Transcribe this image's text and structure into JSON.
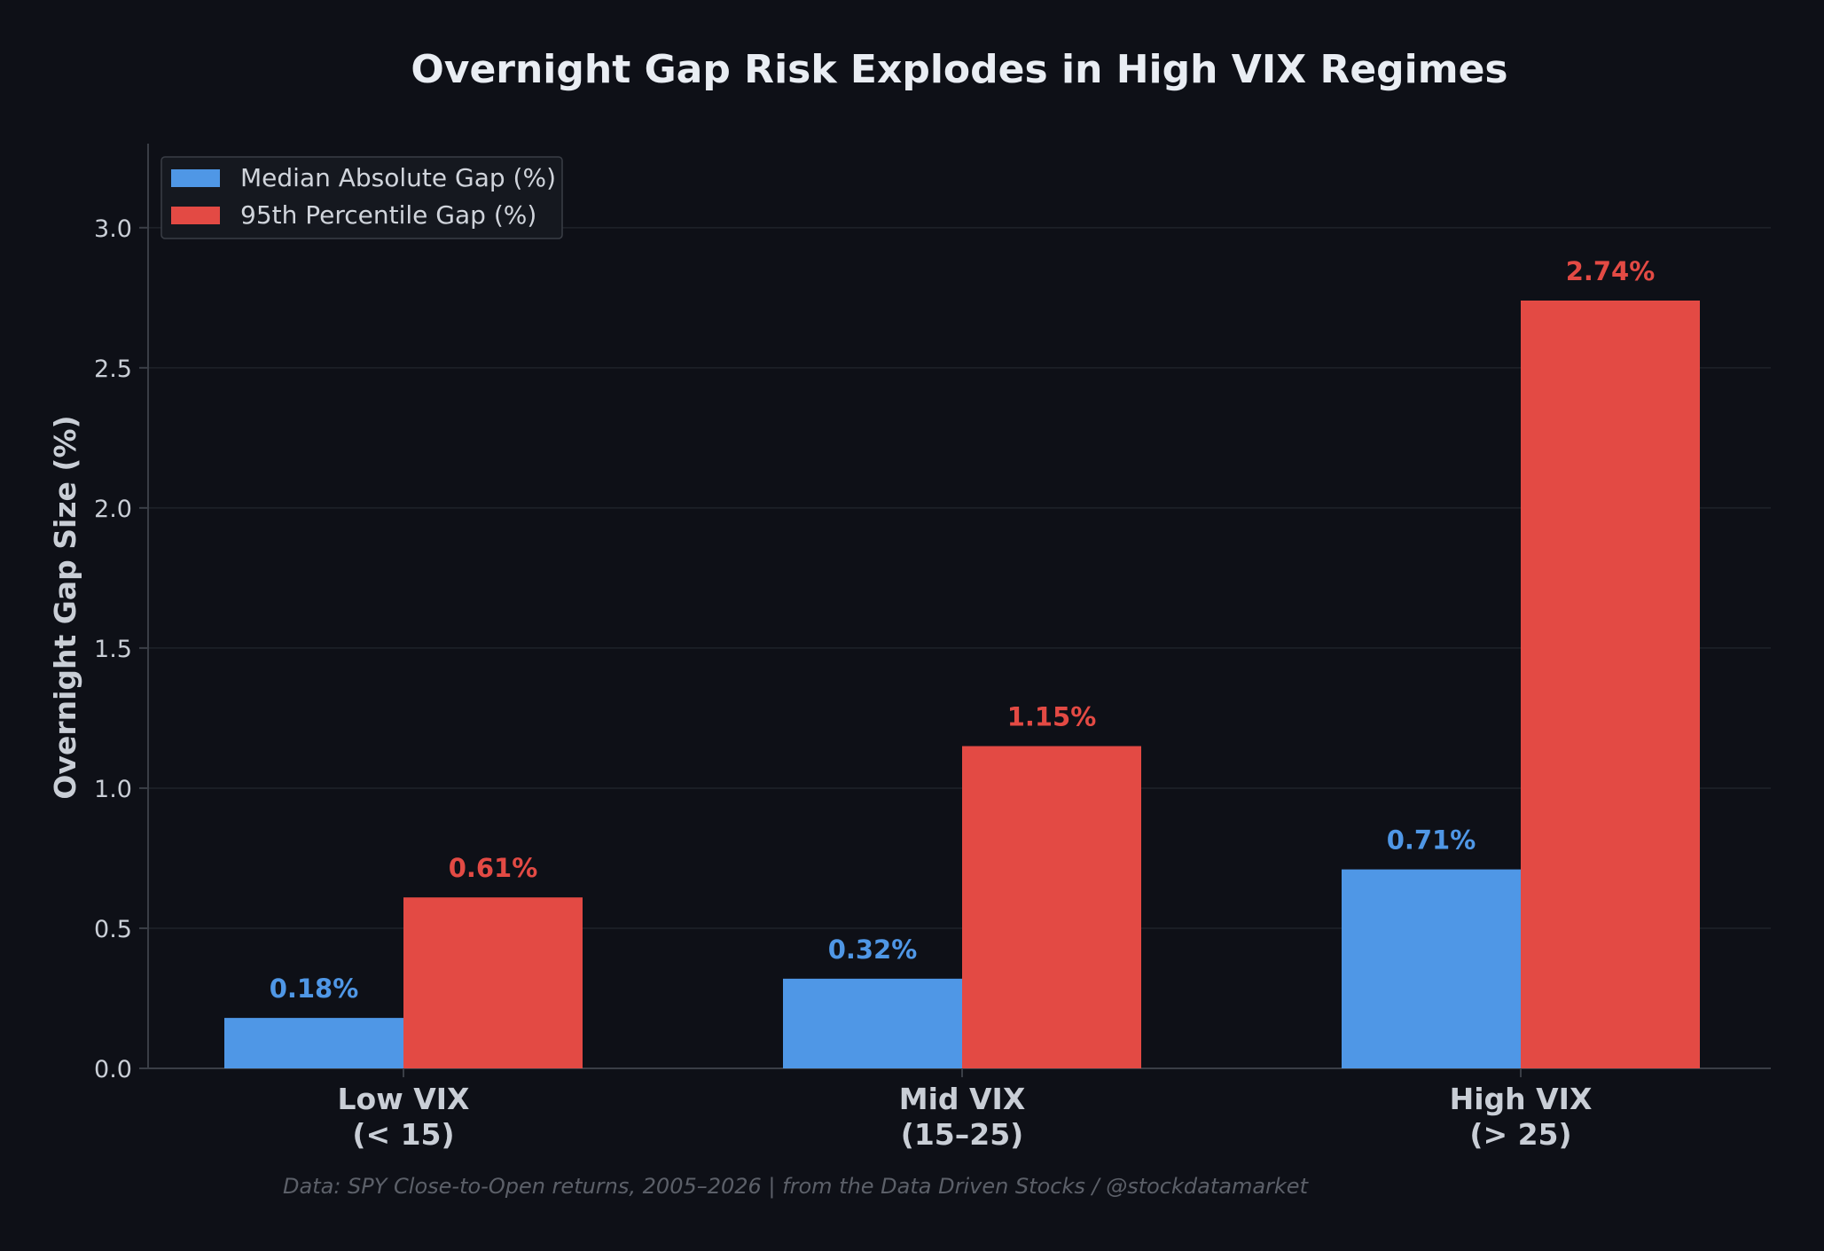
{
  "chart_data": {
    "type": "bar",
    "title": "Overnight Gap Risk Explodes in High VIX Regimes",
    "ylabel": "Overnight Gap Size (%)",
    "xlabel": "",
    "ylim": [
      0,
      3.3
    ],
    "yticks": [
      "0.0",
      "0.5",
      "1.0",
      "1.5",
      "2.0",
      "2.5",
      "3.0"
    ],
    "categories": [
      [
        "Low VIX",
        "(< 15)"
      ],
      [
        "Mid VIX",
        "(15–25)"
      ],
      [
        "High VIX",
        "(> 25)"
      ]
    ],
    "series": [
      {
        "name": "Median Absolute Gap (%)",
        "color": "#4f97e6",
        "values": [
          0.18,
          0.32,
          0.71
        ],
        "labels": [
          "0.18%",
          "0.32%",
          "0.71%"
        ]
      },
      {
        "name": "95th Percentile Gap (%)",
        "color": "#e34a44",
        "values": [
          0.61,
          1.15,
          2.74
        ],
        "labels": [
          "0.61%",
          "1.15%",
          "2.74%"
        ]
      }
    ],
    "grid": true,
    "legend": "upper-left",
    "footnote": "Data: SPY Close-to-Open returns, 2005–2026 | from the Data Driven Stocks / @stockdatamarket"
  }
}
